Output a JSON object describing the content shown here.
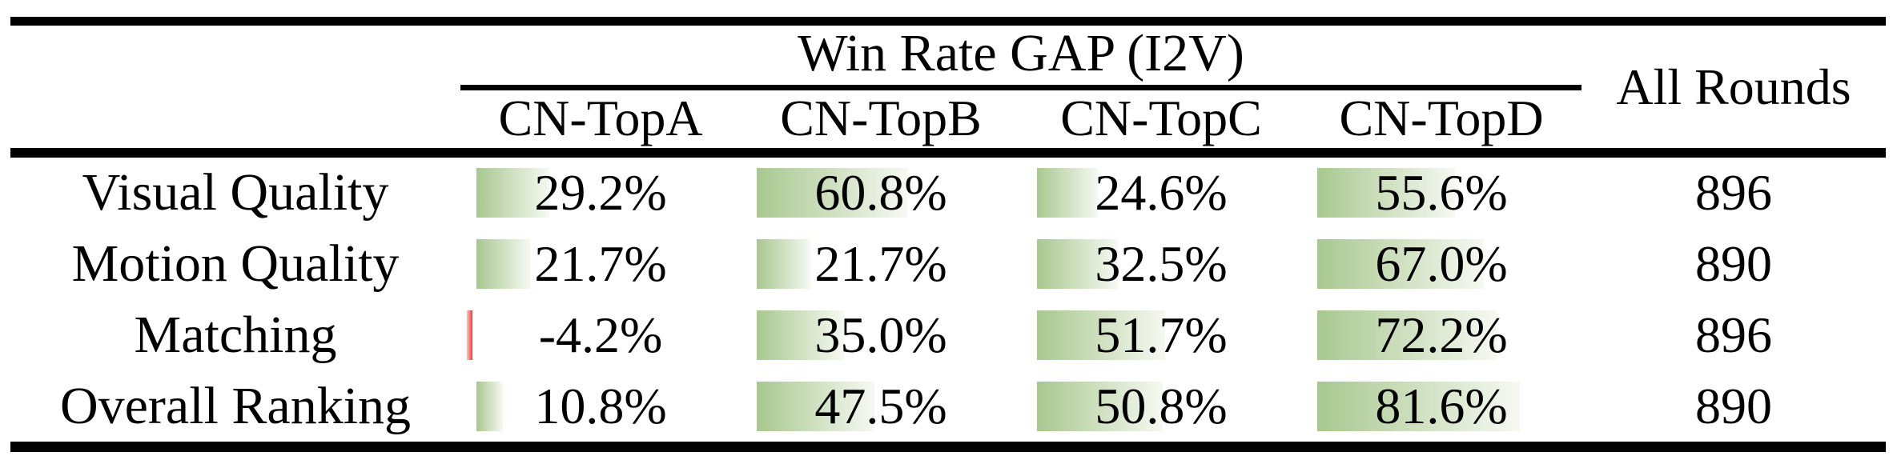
{
  "table": {
    "title": "Win Rate GAP (I2V)",
    "all_rounds_header": "All Rounds",
    "columns": [
      "CN-TopA",
      "CN-TopB",
      "CN-TopC",
      "CN-TopD"
    ],
    "rows": [
      {
        "label": "Visual Quality",
        "cells": [
          {
            "text": "29.2%",
            "value": 29.2
          },
          {
            "text": "60.8%",
            "value": 60.8
          },
          {
            "text": "24.6%",
            "value": 24.6
          },
          {
            "text": "55.6%",
            "value": 55.6
          }
        ],
        "all_rounds": "896"
      },
      {
        "label": "Motion Quality",
        "cells": [
          {
            "text": "21.7%",
            "value": 21.7
          },
          {
            "text": "21.7%",
            "value": 21.7
          },
          {
            "text": "32.5%",
            "value": 32.5
          },
          {
            "text": "67.0%",
            "value": 67.0
          }
        ],
        "all_rounds": "890"
      },
      {
        "label": "Matching",
        "cells": [
          {
            "text": "-4.2%",
            "value": -4.2
          },
          {
            "text": "35.0%",
            "value": 35.0
          },
          {
            "text": "51.7%",
            "value": 51.7
          },
          {
            "text": "72.2%",
            "value": 72.2
          }
        ],
        "all_rounds": "896"
      },
      {
        "label": "Overall Ranking",
        "cells": [
          {
            "text": "10.8%",
            "value": 10.8
          },
          {
            "text": "47.5%",
            "value": 47.5
          },
          {
            "text": "50.8%",
            "value": 50.8
          },
          {
            "text": "81.6%",
            "value": 81.6
          }
        ],
        "all_rounds": "890"
      }
    ]
  },
  "colors": {
    "text": "#000000",
    "rule": "#000000",
    "bar_positive_left": "#a8c88f",
    "bar_positive_right": "#f6f9f2",
    "bar_negative_left": "#f9c4c0",
    "bar_negative_right": "#ee4038"
  },
  "chart_data": {
    "type": "table",
    "title": "Win Rate GAP (I2V)",
    "columns": [
      "",
      "CN-TopA",
      "CN-TopB",
      "CN-TopC",
      "CN-TopD",
      "All Rounds"
    ],
    "rows": [
      [
        "Visual Quality",
        29.2,
        60.8,
        24.6,
        55.6,
        896
      ],
      [
        "Motion Quality",
        21.7,
        21.7,
        32.5,
        67.0,
        890
      ],
      [
        "Matching",
        -4.2,
        35.0,
        51.7,
        72.2,
        896
      ],
      [
        "Overall Ranking",
        10.8,
        47.5,
        50.8,
        81.6,
        890
      ]
    ],
    "value_unit": "%",
    "notes": "Green in-cell data bars proportional to percentage; negative value shown as thin red bar"
  }
}
